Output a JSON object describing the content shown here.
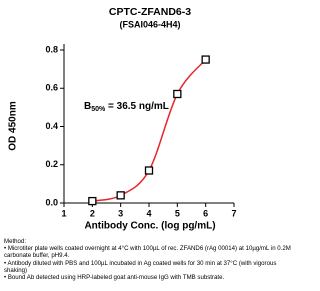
{
  "chart_data": {
    "type": "scatter",
    "title": "CPTC-ZFAND6-3",
    "subtitle": "(FSAI046-4H4)",
    "x_label": "Antibody Conc. (log pg/mL)",
    "y_label": "OD 450nm",
    "annotation": {
      "main": "B",
      "sub": "50%",
      "rest": " = 36.5 ng/mL"
    },
    "x": [
      2,
      3,
      4,
      5,
      6
    ],
    "series": [
      {
        "values": [
          0.01,
          0.04,
          0.17,
          0.57,
          0.75
        ],
        "color": "#e8262a"
      }
    ],
    "xlim": [
      1,
      7
    ],
    "xticks": [
      1,
      2,
      3,
      4,
      5,
      6,
      7
    ],
    "ylim": [
      0,
      0.8
    ],
    "yticks": [
      {
        "value": 0,
        "label": "0.0"
      },
      0.2,
      0.4,
      0.6,
      0.8
    ]
  },
  "method": {
    "heading": "Method:",
    "items": [
      "• Microtiter plate wells coated overnight at 4°C  with 100µL of rec. ZFAND6 (rAg 00014) at 10µg/mL in 0.2M carbonate buffer, pH9.4.",
      "• Antibody diluted with PBS and 100µL incubated in Ag coated wells for 30 min at 37°C (with vigorous shaking)",
      "• Bound Ab detected using HRP-labeled goat anti-mouse IgG with TMB substrate."
    ]
  }
}
